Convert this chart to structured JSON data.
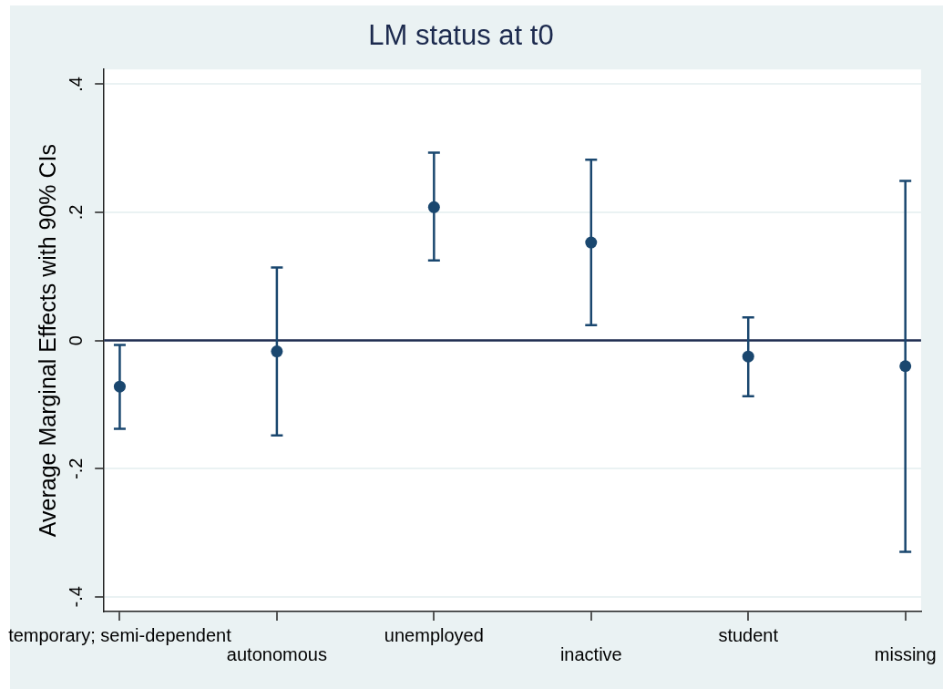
{
  "chart_data": {
    "type": "scatter",
    "title": "LM status at t0",
    "ylabel": "Average Marginal Effects with 90% CIs",
    "categories": [
      "temporary; semi-dependent",
      "autonomous",
      "unemployed",
      "inactive",
      "student",
      "missing"
    ],
    "series": [
      {
        "color": "#1a476f",
        "values": [
          -0.072,
          -0.017,
          0.208,
          0.153,
          -0.025,
          -0.04
        ],
        "errors": [
          [
            -0.138,
            -0.007
          ],
          [
            -0.148,
            0.114
          ],
          [
            0.125,
            0.293
          ],
          [
            0.024,
            0.282
          ],
          [
            -0.087,
            0.036
          ],
          [
            -0.33,
            0.249
          ]
        ]
      }
    ],
    "ylim": [
      -0.423,
      0.423
    ],
    "yticks": [
      {
        "value": -0.4,
        "label": "-.4"
      },
      {
        "value": -0.2,
        "label": "-.2"
      },
      0,
      {
        "value": 0.2,
        "label": ".2"
      },
      {
        "value": 0.4,
        "label": ".4"
      }
    ],
    "grid": "y",
    "marker": "circle",
    "ref_lines": [
      {
        "axis": "y",
        "value": 0,
        "color": "#1f2d50"
      }
    ]
  }
}
